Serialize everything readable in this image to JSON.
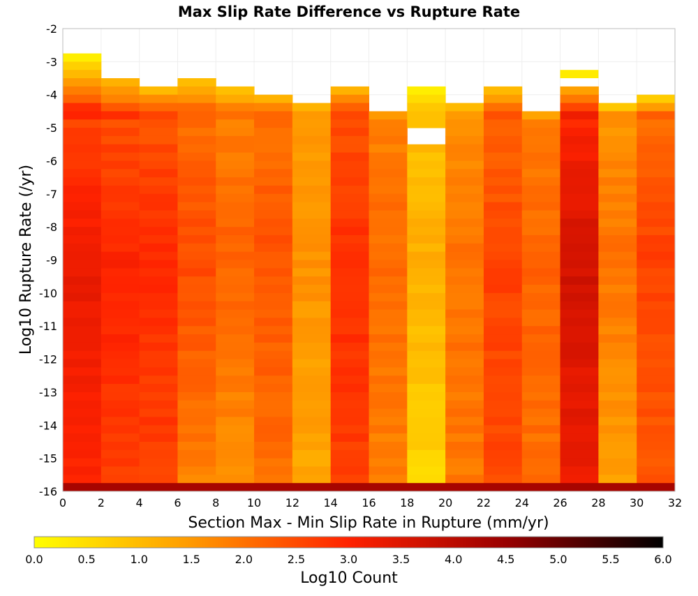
{
  "chart_data": {
    "type": "heatmap",
    "title": "Max Slip Rate Difference vs Rupture Rate",
    "xlabel": "Section Max - Min Slip Rate in Rupture (mm/yr)",
    "ylabel": "Log10 Rupture Rate (/yr)",
    "xlim": [
      0,
      32
    ],
    "ylim": [
      -16,
      -2
    ],
    "x_bin_width": 2,
    "y_bin_height": 0.25,
    "x_ticks": [
      0,
      2,
      4,
      6,
      8,
      10,
      12,
      14,
      16,
      18,
      20,
      22,
      24,
      26,
      28,
      30,
      32
    ],
    "y_ticks": [
      -2,
      -3,
      -4,
      -5,
      -6,
      -7,
      -8,
      -9,
      -10,
      -11,
      -12,
      -13,
      -14,
      -15,
      -16
    ],
    "grid": true,
    "colorbar": {
      "label": "Log10 Count",
      "range": [
        0,
        6
      ],
      "ticks": [
        0.0,
        0.5,
        1.0,
        1.5,
        2.0,
        2.5,
        3.0,
        3.5,
        4.0,
        4.5,
        5.0,
        5.5,
        6.0
      ],
      "tick_labels": [
        "0.0",
        "0.5",
        "1.0",
        "1.5",
        "2.0",
        "2.5",
        "3.0",
        "3.5",
        "4.0",
        "4.5",
        "5.0",
        "5.5",
        "6.0"
      ],
      "colors": [
        "#ffff00",
        "#ff9900",
        "#ff2200",
        "#990000",
        "#000000"
      ],
      "placement": "bottom"
    },
    "columns": [
      {
        "x_start": 0,
        "y_top": -2.75,
        "top_value": 0.2,
        "peak_value": 3.3,
        "bottom_value": 3.0
      },
      {
        "x_start": 2,
        "y_top": -3.5,
        "top_value": 0.8,
        "peak_value": 3.0,
        "bottom_value": 2.7
      },
      {
        "x_start": 4,
        "y_top": -3.75,
        "top_value": 0.9,
        "peak_value": 2.9,
        "bottom_value": 2.6
      },
      {
        "x_start": 6,
        "y_top": -3.5,
        "top_value": 0.8,
        "peak_value": 2.5,
        "bottom_value": 1.8
      },
      {
        "x_start": 8,
        "y_top": -3.75,
        "top_value": 0.8,
        "peak_value": 2.2,
        "bottom_value": 1.6
      },
      {
        "x_start": 10,
        "y_top": -4.0,
        "top_value": 0.9,
        "peak_value": 2.4,
        "bottom_value": 2.0
      },
      {
        "x_start": 12,
        "y_top": -4.25,
        "top_value": 0.9,
        "peak_value": 1.6,
        "bottom_value": 1.3
      },
      {
        "x_start": 14,
        "y_top": -3.75,
        "top_value": 1.0,
        "peak_value": 2.9,
        "bottom_value": 2.6
      },
      {
        "x_start": 16,
        "y_top": -4.5,
        "top_value": 1.0,
        "peak_value": 2.1,
        "bottom_value": 1.8
      },
      {
        "x_start": 18,
        "y_top": -3.75,
        "top_value": 0.1,
        "peak_value": 1.2,
        "bottom_value": 0.6,
        "gap": [
          -5.5,
          -5.0
        ]
      },
      {
        "x_start": 20,
        "y_top": -4.25,
        "top_value": 0.5,
        "peak_value": 2.0,
        "bottom_value": 1.9
      },
      {
        "x_start": 22,
        "y_top": -3.75,
        "top_value": 0.7,
        "peak_value": 2.6,
        "bottom_value": 2.5
      },
      {
        "x_start": 24,
        "y_top": -4.5,
        "top_value": 0.7,
        "peak_value": 2.2,
        "bottom_value": 2.0
      },
      {
        "x_start": 26,
        "y_top": -3.75,
        "top_value": 0.9,
        "peak_value": 3.7,
        "bottom_value": 3.2,
        "island": [
          -3.5,
          -3.25,
          0.3
        ]
      },
      {
        "x_start": 28,
        "y_top": -4.25,
        "top_value": 0.3,
        "peak_value": 2.0,
        "bottom_value": 1.4
      },
      {
        "x_start": 30,
        "y_top": -4.0,
        "top_value": 0.4,
        "peak_value": 2.6,
        "bottom_value": 2.3
      }
    ],
    "bottom_row": {
      "y_range": [
        -16.0,
        -15.75
      ],
      "value": 4.3
    }
  }
}
